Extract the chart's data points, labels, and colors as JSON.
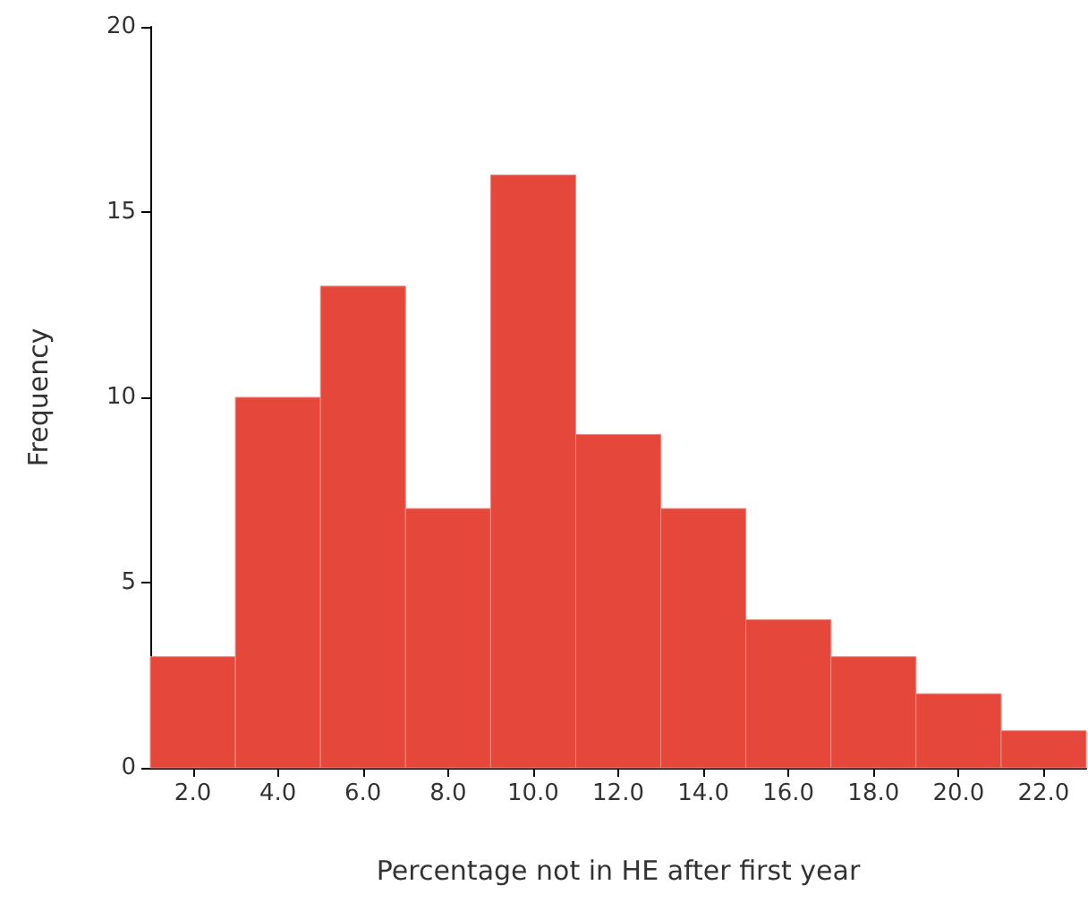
{
  "chart_data": {
    "type": "histogram",
    "xlabel": "Percentage not in HE after first year",
    "ylabel": "Frequency",
    "bins": [
      1,
      3,
      5,
      7,
      9,
      11,
      13,
      15,
      17,
      19,
      21,
      23
    ],
    "values": [
      3,
      10,
      13,
      7,
      16,
      9,
      7,
      4,
      3,
      2,
      1
    ],
    "color": "#e5473b",
    "xlim": [
      1,
      23
    ],
    "xticks": [
      {
        "value": 2,
        "label": "2.0"
      },
      {
        "value": 4,
        "label": "4.0"
      },
      {
        "value": 6,
        "label": "6.0"
      },
      {
        "value": 8,
        "label": "8.0"
      },
      {
        "value": 10,
        "label": "10.0"
      },
      {
        "value": 12,
        "label": "12.0"
      },
      {
        "value": 14,
        "label": "14.0"
      },
      {
        "value": 16,
        "label": "16.0"
      },
      {
        "value": 18,
        "label": "18.0"
      },
      {
        "value": 20,
        "label": "20.0"
      },
      {
        "value": 22,
        "label": "22.0"
      }
    ],
    "ylim": [
      0,
      20
    ],
    "yticks": [
      0,
      5,
      10,
      15,
      20
    ],
    "grid": false
  }
}
